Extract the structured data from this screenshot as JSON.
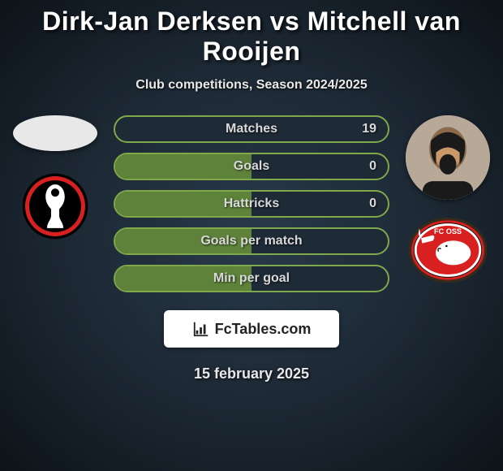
{
  "title": "Dirk-Jan Derksen vs Mitchell van Rooijen",
  "subtitle": "Club competitions, Season 2024/2025",
  "date": "15 february 2025",
  "site": {
    "label": "FcTables.com"
  },
  "colors": {
    "bar_border": "#7fa84a",
    "bar_bg": "#1e2a36",
    "bar_fill": "#5e823a",
    "bar_label": "#d8d8d8"
  },
  "stats": [
    {
      "label": "Matches",
      "left_pct": 0,
      "right_value": "19"
    },
    {
      "label": "Goals",
      "left_pct": 50,
      "right_value": "0"
    },
    {
      "label": "Hattricks",
      "left_pct": 50,
      "right_value": "0"
    },
    {
      "label": "Goals per match",
      "left_pct": 50,
      "right_value": ""
    },
    {
      "label": "Min per goal",
      "left_pct": 50,
      "right_value": ""
    }
  ],
  "left_club": {
    "name": "Helmond Sport",
    "bg": "#000000",
    "accent": "#d92020"
  },
  "right_club": {
    "name": "FC Oss",
    "bg": "#d92020",
    "accent": "#ffffff"
  }
}
